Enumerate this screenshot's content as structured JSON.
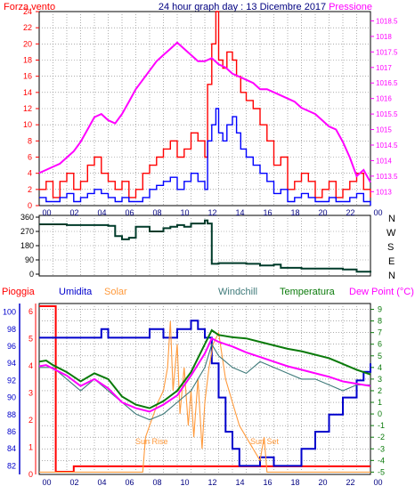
{
  "header": {
    "left_label": "Forza vento",
    "center_label": "24 hour graph day : 13 Dicembre 2017",
    "right_label": "Pressione"
  },
  "colors": {
    "frame": "#000000",
    "grid": "#7a7a7a",
    "wind_gust": "#ff0000",
    "wind_avg": "#0000ff",
    "pressure": "#ff00ff",
    "direction": "#003b2a",
    "rain": "#ff0000",
    "humidity": "#0000cc",
    "solar": "#ff9a3c",
    "windchill": "#3f7a7a",
    "temperature": "#0a7a0a",
    "dewpoint": "#ff00ff",
    "title": "#000080"
  },
  "legend_bottom": {
    "rain": "Pioggia",
    "humidity": "Umidita",
    "solar": "Solar",
    "windchill": "Windchill",
    "temperature": "Temperatura",
    "dewpoint": "Dew Point (°C)"
  },
  "annotations": {
    "sunrise": "Sun Rise",
    "sunset": "Sun Set"
  },
  "directions": [
    "N",
    "W",
    "S",
    "E",
    "N"
  ],
  "chart_data": [
    {
      "type": "line",
      "name": "wind_pressure",
      "x_ticks": [
        "00",
        "02",
        "04",
        "06",
        "08",
        "10",
        "12",
        "14",
        "16",
        "18",
        "20",
        "22",
        "00"
      ],
      "x_range": [
        0,
        24
      ],
      "y_left_ticks": [
        0,
        2,
        4,
        6,
        8,
        10,
        12,
        14,
        16,
        18,
        20,
        22,
        24
      ],
      "y_left_range": [
        0,
        24
      ],
      "y_right_ticks": [
        1013,
        1013.5,
        1014,
        1014.5,
        1015,
        1015.5,
        1016,
        1016.5,
        1017,
        1017.5,
        1018,
        1018.5
      ],
      "y_right_range": [
        1012.55,
        1018.8
      ],
      "series": [
        {
          "key": "gust",
          "axis": "left",
          "x": [
            0,
            0.5,
            1,
            1.5,
            2,
            2.5,
            3,
            3.5,
            4,
            4.5,
            5,
            5.5,
            6,
            6.5,
            7,
            7.5,
            8,
            8.5,
            9,
            9.5,
            10,
            10.5,
            11,
            11.5,
            12,
            12.2,
            12.5,
            12.8,
            13,
            13.3,
            13.6,
            14,
            14.3,
            14.6,
            15,
            15.5,
            16,
            16.5,
            17,
            17.5,
            18,
            18.5,
            19,
            19.5,
            20,
            20.5,
            21,
            21.5,
            22,
            22.5,
            23,
            23.5,
            24
          ],
          "y": [
            2,
            3,
            1,
            3,
            4,
            2,
            3,
            5,
            6,
            4,
            3,
            2,
            3,
            1,
            2,
            4,
            5,
            6,
            7,
            8,
            6,
            7,
            9,
            8,
            6,
            15,
            20,
            24,
            18,
            17,
            19,
            18,
            16,
            14,
            13,
            12,
            10,
            8,
            5,
            6,
            2,
            3,
            4,
            3,
            1,
            2,
            3,
            1,
            2,
            3,
            4,
            2,
            1
          ]
        },
        {
          "key": "average",
          "axis": "left",
          "x": [
            0,
            0.5,
            1,
            1.5,
            2,
            2.5,
            3,
            3.5,
            4,
            4.5,
            5,
            5.5,
            6,
            6.5,
            7,
            7.5,
            8,
            8.5,
            9,
            9.5,
            10,
            10.5,
            11,
            11.5,
            12,
            12.2,
            12.5,
            12.8,
            13,
            13.3,
            13.6,
            14,
            14.3,
            14.6,
            15,
            15.5,
            16,
            16.5,
            17,
            17.5,
            18,
            18.5,
            19,
            19.5,
            20,
            20.5,
            21,
            21.5,
            22,
            22.5,
            23,
            23.5,
            24
          ],
          "y": [
            1,
            0.5,
            0.5,
            1,
            1.5,
            0.5,
            1,
            1.5,
            2,
            1.5,
            1,
            0.5,
            1,
            0.5,
            0.5,
            1,
            2,
            2.5,
            3,
            3.5,
            2,
            3,
            4,
            3,
            2,
            8,
            10,
            12,
            9,
            8,
            10,
            11,
            9,
            7,
            6,
            5,
            4,
            3,
            1.5,
            2,
            0.5,
            1,
            1.5,
            1,
            0.5,
            0.5,
            1,
            0.5,
            0.5,
            1,
            1.5,
            0.5,
            0
          ]
        },
        {
          "key": "pressure",
          "axis": "right",
          "x": [
            0,
            0.5,
            1,
            1.5,
            2,
            2.5,
            3,
            3.5,
            4,
            4.5,
            5,
            5.5,
            6,
            6.5,
            7,
            7.5,
            8,
            8.5,
            9,
            9.5,
            10,
            10.5,
            11,
            11.5,
            12,
            12.5,
            13,
            13.5,
            14,
            14.5,
            15,
            15.5,
            16,
            16.5,
            17,
            17.5,
            18,
            18.5,
            19,
            19.5,
            20,
            20.5,
            21,
            21.5,
            22,
            22.5,
            23,
            23.5,
            24
          ],
          "y": [
            1013.6,
            1013.7,
            1013.8,
            1013.9,
            1014.1,
            1014.3,
            1014.6,
            1015.0,
            1015.4,
            1015.5,
            1015.3,
            1015.2,
            1015.5,
            1015.9,
            1016.3,
            1016.6,
            1016.9,
            1017.2,
            1017.4,
            1017.6,
            1017.8,
            1017.6,
            1017.4,
            1017.2,
            1017.2,
            1017.3,
            1017.1,
            1017.0,
            1016.8,
            1016.7,
            1016.6,
            1016.5,
            1016.3,
            1016.3,
            1016.2,
            1016.1,
            1016.0,
            1015.9,
            1015.7,
            1015.6,
            1015.5,
            1015.3,
            1015.1,
            1015.0,
            1014.6,
            1014.1,
            1013.5,
            1013.7,
            1013.3
          ]
        }
      ]
    },
    {
      "type": "line",
      "name": "wind_direction",
      "x_range": [
        0,
        24
      ],
      "y_ticks": [
        0,
        90,
        180,
        270,
        360
      ],
      "y_range": [
        0,
        360
      ],
      "series": [
        {
          "key": "direction",
          "x": [
            0,
            1,
            2,
            3,
            4,
            5,
            5.5,
            6,
            6.5,
            7,
            7.5,
            8,
            8.5,
            9,
            9.5,
            10,
            10.5,
            11,
            11.5,
            12,
            12.2,
            12.5,
            13,
            14,
            15,
            16,
            17,
            17.5,
            18,
            19,
            20,
            21,
            22,
            23,
            24
          ],
          "y": [
            315,
            315,
            310,
            310,
            310,
            305,
            240,
            220,
            230,
            300,
            300,
            270,
            270,
            290,
            300,
            310,
            300,
            320,
            320,
            340,
            320,
            65,
            70,
            70,
            65,
            55,
            60,
            40,
            40,
            35,
            35,
            35,
            30,
            15,
            10
          ]
        }
      ]
    },
    {
      "type": "line",
      "name": "weather",
      "x_range": [
        0,
        24
      ],
      "y_left1_ticks": [
        0,
        1,
        2,
        3,
        4,
        5,
        6
      ],
      "y_left1_range": [
        0,
        6.3
      ],
      "y_left2_ticks": [
        82,
        84,
        86,
        88,
        90,
        92,
        94,
        96,
        98,
        100
      ],
      "y_left2_range": [
        81,
        101
      ],
      "y_right_ticks": [
        -5,
        -4,
        -3,
        -2,
        -1,
        0,
        1,
        2,
        3,
        4,
        5,
        6,
        7,
        8,
        9
      ],
      "y_right_range": [
        -5.2,
        9.5
      ],
      "series": [
        {
          "key": "rain",
          "axis": "left1",
          "x": [
            0,
            0.2,
            0.4,
            0.8,
            1,
            1.2,
            1.3,
            2,
            2.5,
            24
          ],
          "y": [
            6.2,
            6.2,
            6.2,
            6.2,
            6.2,
            0.1,
            0.1,
            0.1,
            0.3,
            0.3
          ]
        },
        {
          "key": "humidity",
          "axis": "left2",
          "x": [
            0,
            1,
            2,
            3,
            4,
            4.5,
            5,
            6,
            7,
            8,
            9,
            10,
            10.5,
            11,
            11.5,
            12,
            12.5,
            13,
            13.5,
            14,
            14.5,
            15,
            16,
            17,
            18,
            19,
            20,
            21,
            22,
            23,
            23.5,
            24
          ],
          "y": [
            97,
            97,
            97,
            97,
            97,
            98,
            97,
            97,
            97,
            98,
            97,
            98,
            98,
            99,
            98,
            97,
            94,
            90,
            86,
            84,
            82,
            82,
            83,
            82,
            82,
            84,
            86,
            88,
            90,
            92,
            93,
            94
          ]
        },
        {
          "key": "solar",
          "axis": "right",
          "x": [
            0,
            7.5,
            7.7,
            8,
            8.3,
            8.6,
            9,
            9.3,
            9.5,
            9.7,
            10,
            10.2,
            10.5,
            10.8,
            11,
            11.2,
            11.5,
            11.8,
            12,
            12.3,
            12.6,
            13,
            13.5,
            14,
            14.5,
            15,
            15.5,
            16,
            16.3,
            16.5,
            24
          ],
          "y": [
            -5,
            -5,
            -2,
            -1,
            0,
            1,
            2,
            4,
            8,
            2,
            6,
            0,
            4,
            -1,
            2,
            -2,
            3,
            -3,
            1,
            4,
            6,
            7,
            3,
            1,
            -1,
            -2,
            -3,
            -4,
            -2,
            -5,
            -5
          ]
        },
        {
          "key": "windchill",
          "axis": "right",
          "x": [
            0,
            1,
            2,
            3,
            4,
            5,
            6,
            7,
            8,
            9,
            10,
            11,
            12,
            12.5,
            13,
            14,
            15,
            16,
            17,
            18,
            19,
            20,
            21,
            22,
            23,
            24
          ],
          "y": [
            4,
            4,
            3,
            2,
            3,
            2,
            1,
            0,
            -0.5,
            0,
            1,
            2,
            4,
            6,
            5,
            4,
            3.5,
            4.5,
            4,
            3.5,
            3,
            3,
            2.5,
            2,
            2.5,
            2.5
          ]
        },
        {
          "key": "temperature",
          "axis": "right",
          "x": [
            0,
            0.5,
            1,
            2,
            3,
            4,
            5,
            6,
            7,
            8,
            9,
            10,
            11,
            12,
            12.5,
            13,
            14,
            15,
            16,
            17,
            18,
            19,
            20,
            21,
            22,
            23,
            24
          ],
          "y": [
            4.5,
            4.6,
            4.2,
            3.6,
            2.8,
            3.5,
            3.0,
            1.5,
            0.8,
            0.5,
            1.1,
            2.0,
            3.6,
            6.0,
            7.2,
            6.8,
            6.6,
            6.5,
            6.2,
            5.9,
            5.6,
            5.4,
            5.1,
            4.8,
            4.3,
            3.8,
            3.4
          ]
        },
        {
          "key": "dewpoint",
          "axis": "right",
          "x": [
            0,
            0.5,
            1,
            2,
            3,
            4,
            5,
            6,
            7,
            8,
            9,
            10,
            11,
            12,
            12.5,
            13,
            14,
            15,
            16,
            17,
            18,
            19,
            20,
            21,
            22,
            23,
            24
          ],
          "y": [
            4.1,
            4.2,
            3.9,
            3.3,
            2.4,
            3.0,
            2.2,
            1.0,
            0.5,
            0.2,
            0.8,
            1.6,
            3.3,
            5.2,
            6.5,
            6.2,
            5.8,
            5.3,
            4.9,
            4.5,
            4.1,
            3.8,
            3.5,
            3.2,
            2.8,
            2.6,
            2.4
          ]
        }
      ]
    }
  ]
}
